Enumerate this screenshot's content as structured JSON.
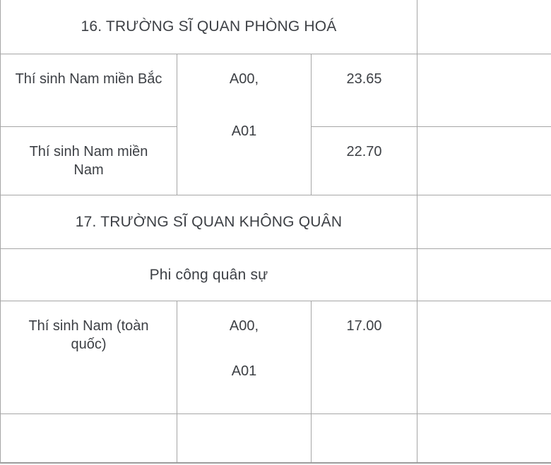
{
  "document": {
    "type": "admission-score-table",
    "columns": [
      "candidate-group",
      "subject-combinations",
      "score",
      "notes"
    ]
  },
  "colors": {
    "background": "#ffffff",
    "border": "#a6a6a6",
    "text": "#3d4045"
  },
  "sections": [
    {
      "title": "16. TRƯỜNG SĨ QUAN PHÒNG HOÁ",
      "rows": [
        {
          "label": "Thí sinh Nam miền Bắc",
          "combos": [
            "A00,",
            "A01"
          ],
          "score": "23.65"
        },
        {
          "label": "Thí sinh Nam miền Nam",
          "score": "22.70"
        }
      ]
    },
    {
      "title": "17. TRƯỜNG SĨ QUAN KHÔNG QUÂN",
      "subtitle": "Phi công quân sự",
      "rows": [
        {
          "label": "Thí sinh Nam (toàn quốc)",
          "combos": [
            "A00,",
            "A01"
          ],
          "score": "17.00"
        }
      ]
    }
  ]
}
